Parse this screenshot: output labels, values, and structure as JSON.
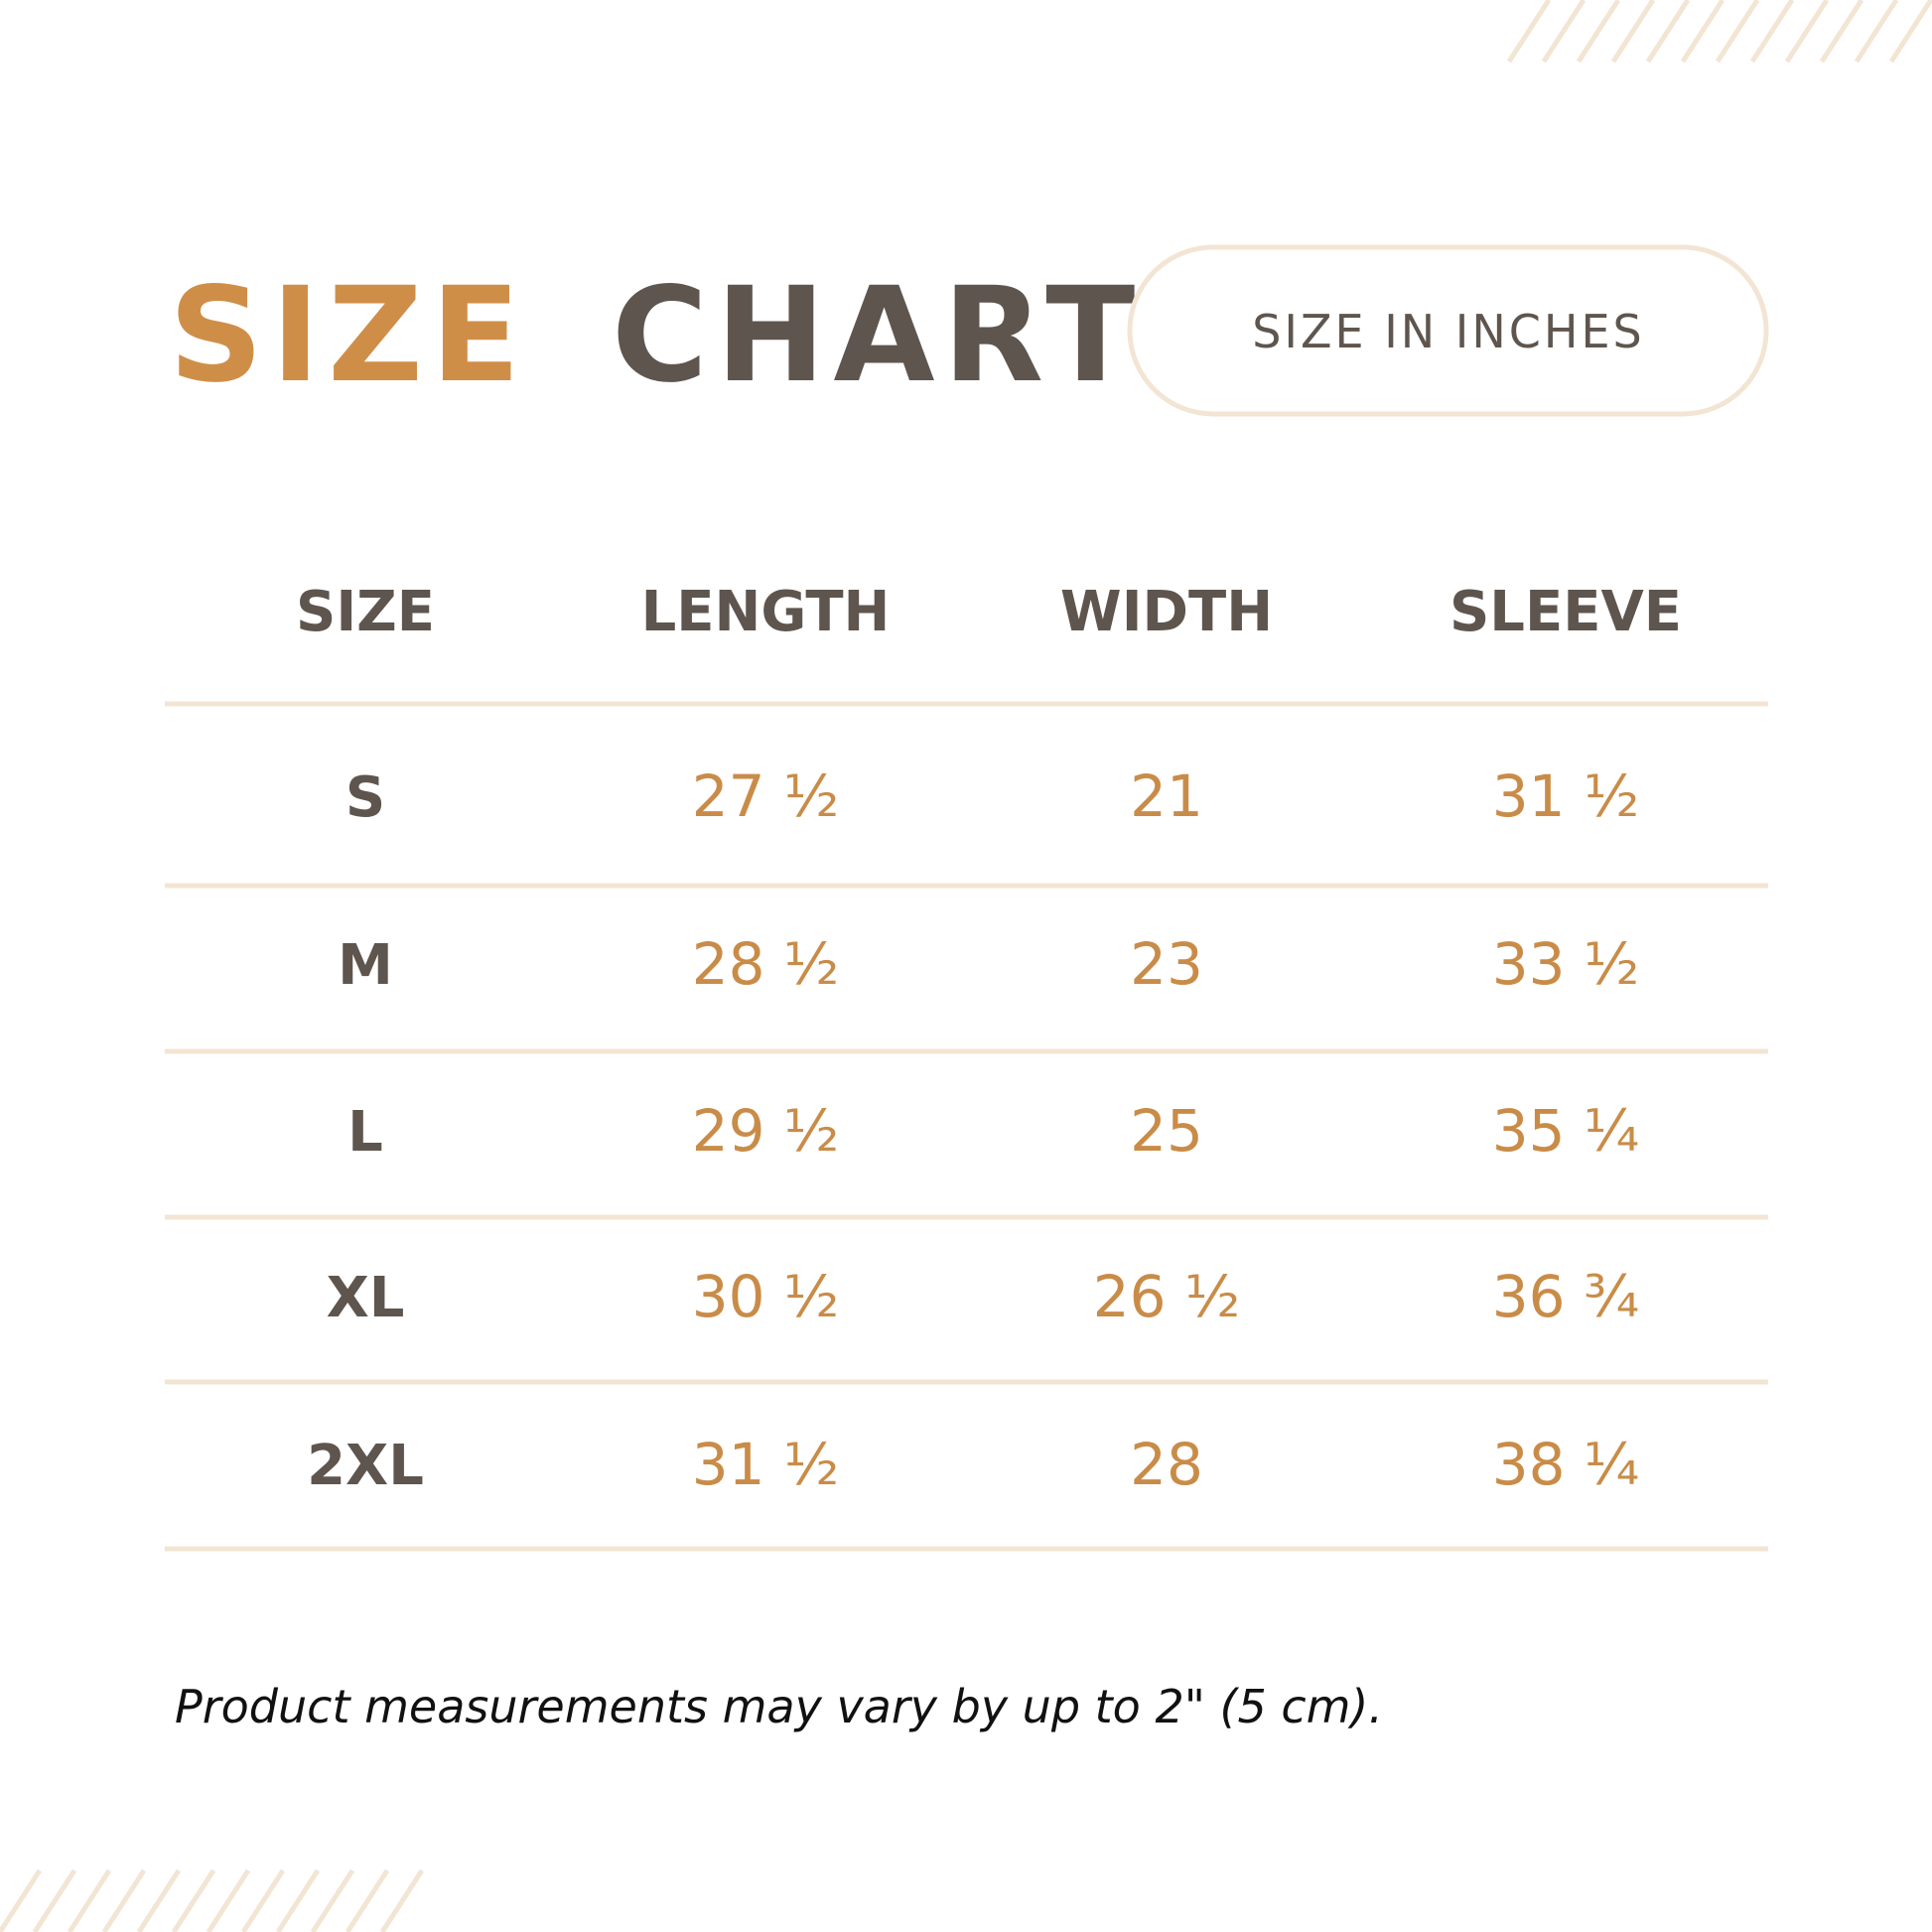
{
  "header": {
    "title_accent": "SIZE",
    "title_main": "CHART",
    "badge": "SIZE IN INCHES"
  },
  "table": {
    "columns": [
      "SIZE",
      "LENGTH",
      "WIDTH",
      "SLEEVE"
    ],
    "rows": [
      [
        "S",
        "27 ½",
        "21",
        "31 ½"
      ],
      [
        "M",
        "28 ½",
        "23",
        "33 ½"
      ],
      [
        "L",
        "29 ½",
        "25",
        "35 ¼"
      ],
      [
        "XL",
        "30 ½",
        "26 ½",
        "36 ¾"
      ],
      [
        "2XL",
        "31 ½",
        "28",
        "38 ¼"
      ]
    ]
  },
  "footnote": "Product measurements may vary by up to 2\" (5 cm)."
}
